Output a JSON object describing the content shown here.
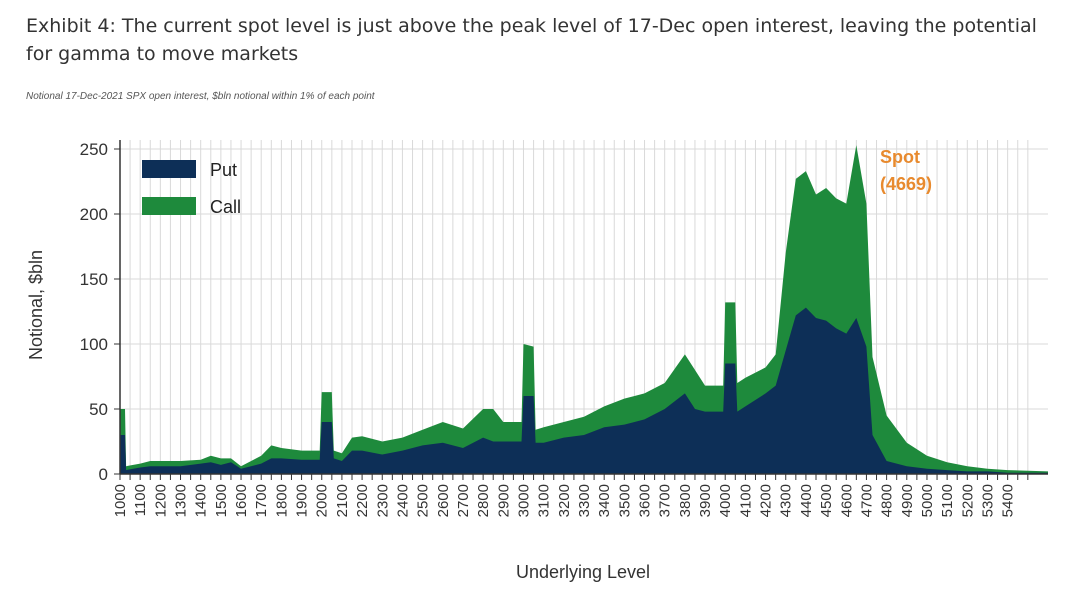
{
  "title": "Exhibit 4: The current spot level is just above the peak level of 17-Dec open interest, leaving the potential for gamma to move markets",
  "subtitle": "Notional 17-Dec-2021 SPX open interest, $bln notional within 1% of each point",
  "colors": {
    "put": "#0d2f57",
    "call": "#1e8a3c",
    "grid": "#d9d9d9",
    "annotation": "#e88a2e"
  },
  "chart_data": {
    "type": "area",
    "xlabel": "Underlying Level",
    "ylabel": "Notional, $bln",
    "ylim": [
      0,
      250
    ],
    "yticks": [
      0,
      50,
      100,
      150,
      200,
      250
    ],
    "xlim": [
      1000,
      5600
    ],
    "x_tick_labels": [
      "1000",
      "1100",
      "1200",
      "1300",
      "1400",
      "1500",
      "1600",
      "1700",
      "1800",
      "1900",
      "2000",
      "2100",
      "2200",
      "2300",
      "2400",
      "2500",
      "2600",
      "2700",
      "2800",
      "2900",
      "3000",
      "3100",
      "3200",
      "3300",
      "3400",
      "3500",
      "3600",
      "3700",
      "3800",
      "3900",
      "4000",
      "4100",
      "4200",
      "4300",
      "4400",
      "4500",
      "4600",
      "4700",
      "4800",
      "4900",
      "5000",
      "5100",
      "5200",
      "5300",
      "5400"
    ],
    "grid": true,
    "legend_position": "top-left",
    "stacked": true,
    "series": [
      {
        "name": "Put",
        "points": [
          [
            1000,
            30
          ],
          [
            1025,
            30
          ],
          [
            1030,
            3
          ],
          [
            1100,
            5
          ],
          [
            1150,
            6
          ],
          [
            1200,
            6
          ],
          [
            1300,
            6
          ],
          [
            1400,
            8
          ],
          [
            1450,
            9
          ],
          [
            1500,
            7
          ],
          [
            1550,
            9
          ],
          [
            1600,
            4
          ],
          [
            1700,
            8
          ],
          [
            1750,
            12
          ],
          [
            1800,
            12
          ],
          [
            1900,
            11
          ],
          [
            1990,
            11
          ],
          [
            2000,
            40
          ],
          [
            2050,
            40
          ],
          [
            2060,
            12
          ],
          [
            2100,
            10
          ],
          [
            2150,
            18
          ],
          [
            2200,
            18
          ],
          [
            2300,
            15
          ],
          [
            2400,
            18
          ],
          [
            2500,
            22
          ],
          [
            2600,
            24
          ],
          [
            2700,
            20
          ],
          [
            2800,
            28
          ],
          [
            2850,
            25
          ],
          [
            2900,
            25
          ],
          [
            2990,
            25
          ],
          [
            3000,
            60
          ],
          [
            3050,
            60
          ],
          [
            3060,
            24
          ],
          [
            3100,
            24
          ],
          [
            3200,
            28
          ],
          [
            3300,
            30
          ],
          [
            3400,
            36
          ],
          [
            3500,
            38
          ],
          [
            3600,
            42
          ],
          [
            3700,
            50
          ],
          [
            3800,
            62
          ],
          [
            3850,
            50
          ],
          [
            3900,
            48
          ],
          [
            3990,
            48
          ],
          [
            4000,
            85
          ],
          [
            4050,
            85
          ],
          [
            4060,
            48
          ],
          [
            4100,
            52
          ],
          [
            4200,
            62
          ],
          [
            4250,
            68
          ],
          [
            4300,
            95
          ],
          [
            4350,
            122
          ],
          [
            4400,
            128
          ],
          [
            4450,
            120
          ],
          [
            4500,
            118
          ],
          [
            4550,
            112
          ],
          [
            4600,
            108
          ],
          [
            4650,
            120
          ],
          [
            4700,
            98
          ],
          [
            4730,
            30
          ],
          [
            4800,
            10
          ],
          [
            4900,
            6
          ],
          [
            5000,
            4
          ],
          [
            5100,
            3
          ],
          [
            5200,
            2
          ],
          [
            5300,
            2
          ],
          [
            5400,
            1
          ],
          [
            5600,
            1
          ]
        ]
      },
      {
        "name": "Call",
        "points": [
          [
            1000,
            20
          ],
          [
            1025,
            20
          ],
          [
            1030,
            3
          ],
          [
            1100,
            3
          ],
          [
            1150,
            4
          ],
          [
            1200,
            4
          ],
          [
            1300,
            4
          ],
          [
            1400,
            3
          ],
          [
            1450,
            5
          ],
          [
            1500,
            5
          ],
          [
            1550,
            3
          ],
          [
            1600,
            2
          ],
          [
            1700,
            6
          ],
          [
            1750,
            10
          ],
          [
            1800,
            8
          ],
          [
            1900,
            7
          ],
          [
            1990,
            7
          ],
          [
            2000,
            23
          ],
          [
            2050,
            23
          ],
          [
            2060,
            6
          ],
          [
            2100,
            6
          ],
          [
            2150,
            10
          ],
          [
            2200,
            11
          ],
          [
            2300,
            10
          ],
          [
            2400,
            10
          ],
          [
            2500,
            12
          ],
          [
            2600,
            16
          ],
          [
            2700,
            15
          ],
          [
            2800,
            22
          ],
          [
            2850,
            25
          ],
          [
            2900,
            15
          ],
          [
            2990,
            15
          ],
          [
            3000,
            40
          ],
          [
            3050,
            38
          ],
          [
            3060,
            10
          ],
          [
            3100,
            12
          ],
          [
            3200,
            12
          ],
          [
            3300,
            14
          ],
          [
            3400,
            16
          ],
          [
            3500,
            20
          ],
          [
            3600,
            20
          ],
          [
            3700,
            20
          ],
          [
            3800,
            30
          ],
          [
            3850,
            30
          ],
          [
            3900,
            20
          ],
          [
            3990,
            20
          ],
          [
            4000,
            47
          ],
          [
            4050,
            47
          ],
          [
            4060,
            22
          ],
          [
            4100,
            22
          ],
          [
            4200,
            20
          ],
          [
            4250,
            24
          ],
          [
            4300,
            75
          ],
          [
            4350,
            105
          ],
          [
            4400,
            105
          ],
          [
            4450,
            95
          ],
          [
            4500,
            102
          ],
          [
            4550,
            100
          ],
          [
            4600,
            100
          ],
          [
            4650,
            133
          ],
          [
            4700,
            110
          ],
          [
            4730,
            60
          ],
          [
            4800,
            35
          ],
          [
            4900,
            18
          ],
          [
            5000,
            10
          ],
          [
            5100,
            6
          ],
          [
            5200,
            4
          ],
          [
            5300,
            2
          ],
          [
            5400,
            2
          ],
          [
            5600,
            1
          ]
        ]
      }
    ],
    "annotations": [
      {
        "text_line1": "Spot",
        "text_line2": "(4669)",
        "x": 4669,
        "y": 255
      }
    ]
  }
}
